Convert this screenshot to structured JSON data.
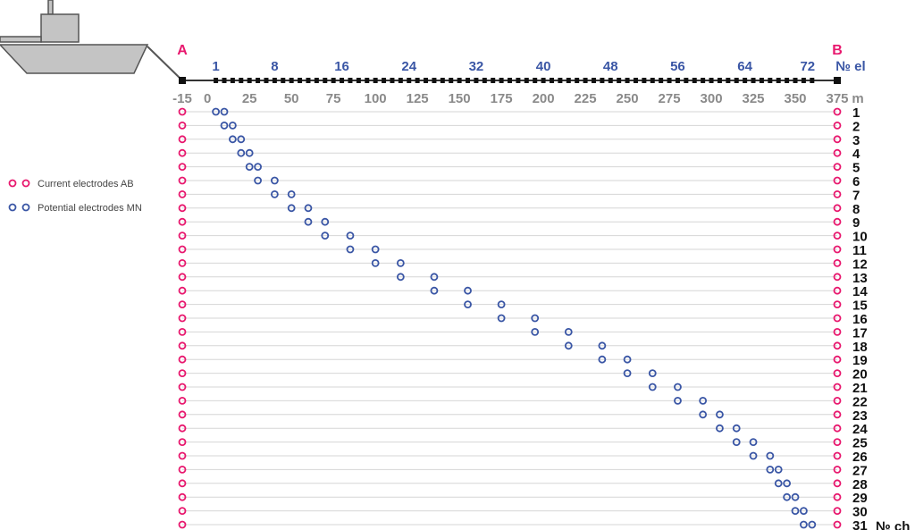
{
  "labels": {
    "a": "A",
    "b": "B",
    "electrode_axis_unit": "№ el",
    "meter_axis_unit": "m",
    "channel_unit": "№ ch"
  },
  "electrode_ticks": [
    "1",
    "8",
    "16",
    "24",
    "32",
    "40",
    "48",
    "56",
    "64",
    "72"
  ],
  "meter_ticks": [
    "-15",
    "0",
    "25",
    "50",
    "75",
    "100",
    "125",
    "150",
    "175",
    "200",
    "225",
    "250",
    "275",
    "300",
    "325",
    "350",
    "375"
  ],
  "legend": {
    "current": "Current electrodes AB",
    "potential": "Potential electrodes MN"
  },
  "colors": {
    "current": "#e8186e",
    "potential": "#3a56a5",
    "electrode_numbers": "#3a56a5",
    "meter_numbers": "#8a8a8a",
    "channel_numbers": "#111111",
    "cable": "#333333",
    "electrode_mark": "#111111",
    "rows": "#d6d6d6",
    "boat_hull": "#c4c4c4",
    "boat_outline": "#555555"
  },
  "chart_data": {
    "type": "scatter",
    "x_unit": "m",
    "xlim": [
      -15,
      375
    ],
    "current_electrodes_m": {
      "A": -15,
      "B": 375
    },
    "channel_count": 31,
    "potential_mn_m": [
      [
        5,
        10
      ],
      [
        10,
        15
      ],
      [
        15,
        20
      ],
      [
        20,
        25
      ],
      [
        25,
        30
      ],
      [
        30,
        40
      ],
      [
        40,
        50
      ],
      [
        50,
        60
      ],
      [
        60,
        70
      ],
      [
        70,
        85
      ],
      [
        85,
        100
      ],
      [
        100,
        115
      ],
      [
        115,
        135
      ],
      [
        135,
        155
      ],
      [
        155,
        175
      ],
      [
        175,
        195
      ],
      [
        195,
        215
      ],
      [
        215,
        235
      ],
      [
        235,
        250
      ],
      [
        250,
        265
      ],
      [
        265,
        280
      ],
      [
        280,
        295
      ],
      [
        295,
        305
      ],
      [
        305,
        315
      ],
      [
        315,
        325
      ],
      [
        325,
        335
      ],
      [
        335,
        340
      ],
      [
        340,
        345
      ],
      [
        345,
        350
      ],
      [
        350,
        355
      ],
      [
        355,
        360
      ]
    ],
    "legend": [
      "Current electrodes AB",
      "Potential electrodes MN"
    ]
  }
}
